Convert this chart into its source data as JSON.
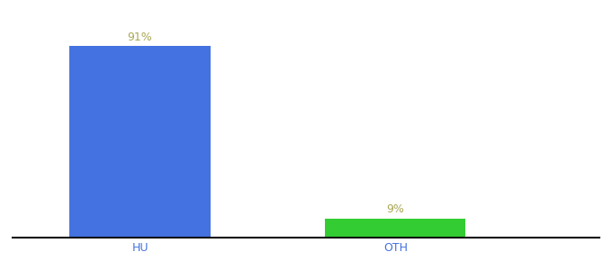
{
  "categories": [
    "HU",
    "OTH"
  ],
  "values": [
    91,
    9
  ],
  "bar_colors": [
    "#4472e0",
    "#33cc33"
  ],
  "value_labels": [
    "91%",
    "9%"
  ],
  "background_color": "#ffffff",
  "label_color": "#aaa855",
  "xlabel_color": "#4472e0",
  "ylim": [
    0,
    100
  ],
  "bar_width": 0.55,
  "label_fontsize": 9,
  "xlabel_fontsize": 9,
  "x_positions": [
    1,
    2
  ],
  "xlim": [
    0.5,
    2.8
  ]
}
